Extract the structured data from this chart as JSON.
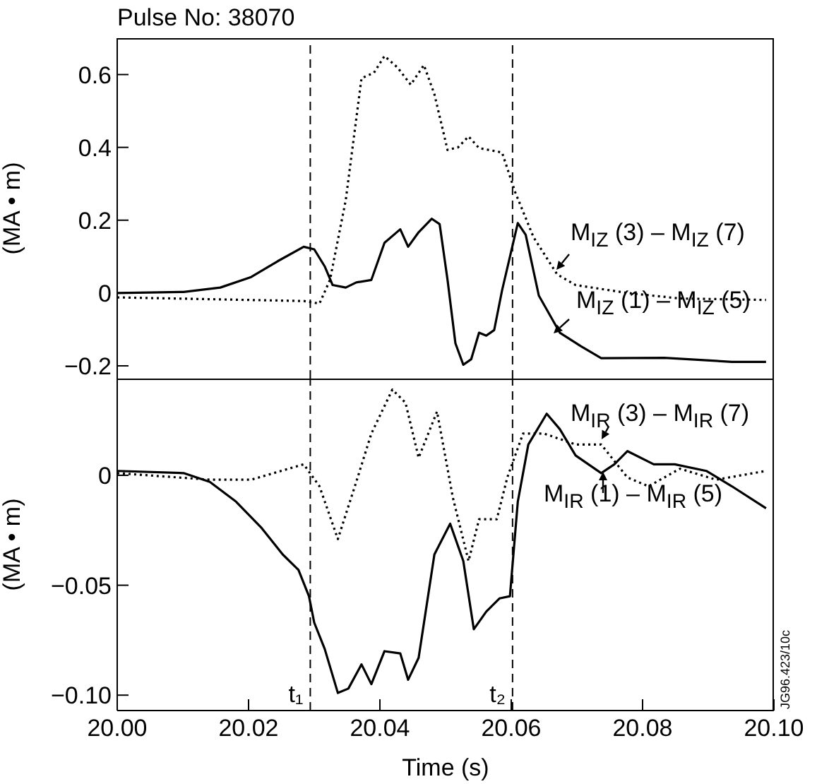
{
  "chart_data": [
    {
      "type": "line",
      "title": "Pulse No: 38070",
      "ylabel": "(MA • m)",
      "xlim": [
        20.0,
        20.1
      ],
      "ylim": [
        -0.235,
        0.7
      ],
      "yticks": [
        {
          "value": 0.6,
          "label": "0.6"
        },
        {
          "value": 0.4,
          "label": "0.4"
        },
        {
          "value": 0.2,
          "label": "0.2"
        },
        {
          "value": 0,
          "label": "0"
        },
        {
          "value": -0.2,
          "label": "−0.2"
        }
      ],
      "tick_labels": "y",
      "legend": "right",
      "ref_lines": [
        {
          "axis": "x",
          "value": 20.0294,
          "line_style": "dashed"
        },
        {
          "axis": "x",
          "value": 20.0602,
          "line_style": "dashed"
        }
      ],
      "series": [
        {
          "name": "M$_{IZ}$ (1) – M$_{IZ}$ (5)",
          "color": "#000000",
          "line_style": "solid",
          "x": [
            20.0,
            20.0101,
            20.0157,
            20.0204,
            20.0244,
            20.0284,
            20.03,
            20.0316,
            20.0328,
            20.0348,
            20.0364,
            20.0387,
            20.0407,
            20.0431,
            20.0443,
            20.0459,
            20.0479,
            20.0491,
            20.0503,
            20.0515,
            20.0527,
            20.0539,
            20.0551,
            20.0562,
            20.0574,
            20.0586,
            20.061,
            20.0622,
            20.0642,
            20.0674,
            20.0706,
            20.0737,
            20.0833,
            20.0936,
            20.0988
          ],
          "values": [
            0,
            0.003,
            0.015,
            0.044,
            0.087,
            0.127,
            0.12,
            0.073,
            0.022,
            0.015,
            0.029,
            0.036,
            0.138,
            0.175,
            0.127,
            0.167,
            0.204,
            0.189,
            0.036,
            -0.138,
            -0.197,
            -0.182,
            -0.109,
            -0.117,
            -0.102,
            0.007,
            0.192,
            0.16,
            -0.007,
            -0.109,
            -0.146,
            -0.179,
            -0.178,
            -0.189,
            -0.189
          ]
        },
        {
          "name": "M$_{IZ}$ (3) – M$_{IZ}$ (7)",
          "color": "#000000",
          "line_style": "dotted",
          "x": [
            20.0,
            20.0284,
            20.0308,
            20.0324,
            20.0348,
            20.0372,
            20.0391,
            20.0407,
            20.0427,
            20.0447,
            20.0467,
            20.0483,
            20.0503,
            20.0519,
            20.0535,
            20.0551,
            20.0586,
            20.0606,
            20.0634,
            20.067,
            20.0698,
            20.0777,
            20.0857,
            20.0988
          ],
          "values": [
            -0.012,
            -0.022,
            -0.029,
            0.036,
            0.255,
            0.59,
            0.605,
            0.651,
            0.619,
            0.572,
            0.626,
            0.546,
            0.393,
            0.4,
            0.43,
            0.398,
            0.386,
            0.277,
            0.153,
            0.051,
            0.022,
            0,
            -0.015,
            -0.019
          ]
        }
      ]
    },
    {
      "type": "line",
      "xlabel": "Time (s)",
      "ylabel": "(MA • m)",
      "xlim": [
        20.0,
        20.1
      ],
      "xticks": [
        {
          "value": 20.0,
          "label": "20.00"
        },
        {
          "value": 20.02,
          "label": "20.02"
        },
        {
          "value": 20.04,
          "label": "20.04"
        },
        {
          "value": 20.06,
          "label": "20.06"
        },
        {
          "value": 20.08,
          "label": "20.08"
        },
        {
          "value": 20.1,
          "label": "20.10"
        }
      ],
      "ylim": [
        -0.107,
        0.044
      ],
      "yticks": [
        {
          "value": 0,
          "label": "0"
        },
        {
          "value": -0.05,
          "label": "−0.05"
        },
        {
          "value": -0.1,
          "label": "−0.10"
        }
      ],
      "legend": "right",
      "ref_lines": [
        {
          "axis": "x",
          "value": 20.0294,
          "label": "t₁",
          "line_style": "dashed"
        },
        {
          "axis": "x",
          "value": 20.0602,
          "label": "t₂",
          "line_style": "dashed"
        }
      ],
      "annotations": [
        "JG96.423/10c"
      ],
      "series": [
        {
          "name": "M$_{IR}$ (1) – M$_{IR}$ (5)",
          "color": "#000000",
          "line_style": "solid",
          "x": [
            20.0,
            20.0101,
            20.0141,
            20.0181,
            20.022,
            20.0252,
            20.0276,
            20.0292,
            20.03,
            20.0316,
            20.0336,
            20.0352,
            20.0372,
            20.0387,
            20.0407,
            20.0431,
            20.0443,
            20.0459,
            20.0483,
            20.0507,
            20.0527,
            20.0543,
            20.0562,
            20.0582,
            20.0598,
            20.061,
            20.0626,
            20.0654,
            20.0674,
            20.0698,
            20.0737,
            20.0757,
            20.0777,
            20.0817,
            20.0849,
            20.0897,
            20.0936,
            20.0988
          ],
          "values": [
            0.002,
            0.001,
            -0.003,
            -0.012,
            -0.024,
            -0.036,
            -0.043,
            -0.055,
            -0.067,
            -0.079,
            -0.099,
            -0.097,
            -0.086,
            -0.095,
            -0.08,
            -0.081,
            -0.093,
            -0.083,
            -0.036,
            -0.022,
            -0.039,
            -0.07,
            -0.062,
            -0.056,
            -0.055,
            -0.012,
            0.014,
            0.028,
            0.021,
            0.009,
            0.001,
            0.005,
            0.011,
            0.005,
            0.005,
            0.002,
            -0.005,
            -0.015
          ]
        },
        {
          "name": "M$_{IR}$ (3) – M$_{IR}$ (7)",
          "color": "#000000",
          "line_style": "dotted",
          "x": [
            20.0,
            20.0141,
            20.0204,
            20.0284,
            20.0308,
            20.0336,
            20.0364,
            20.0387,
            20.0419,
            20.0439,
            20.0459,
            20.0487,
            20.0511,
            20.0535,
            20.0551,
            20.0578,
            20.0594,
            20.0618,
            20.065,
            20.0698,
            20.0737,
            20.0777,
            20.0809,
            20.0857,
            20.0912,
            20.0988
          ],
          "values": [
            0.001,
            -0.002,
            -0.002,
            0.005,
            -0.005,
            -0.029,
            -0.003,
            0.019,
            0.039,
            0.033,
            0.008,
            0.029,
            -0.01,
            -0.039,
            -0.02,
            -0.02,
            -0.001,
            0.019,
            0.019,
            0.014,
            0.014,
            -0.001,
            -0.005,
            0.003,
            -0.002,
            0.002
          ]
        }
      ]
    }
  ]
}
